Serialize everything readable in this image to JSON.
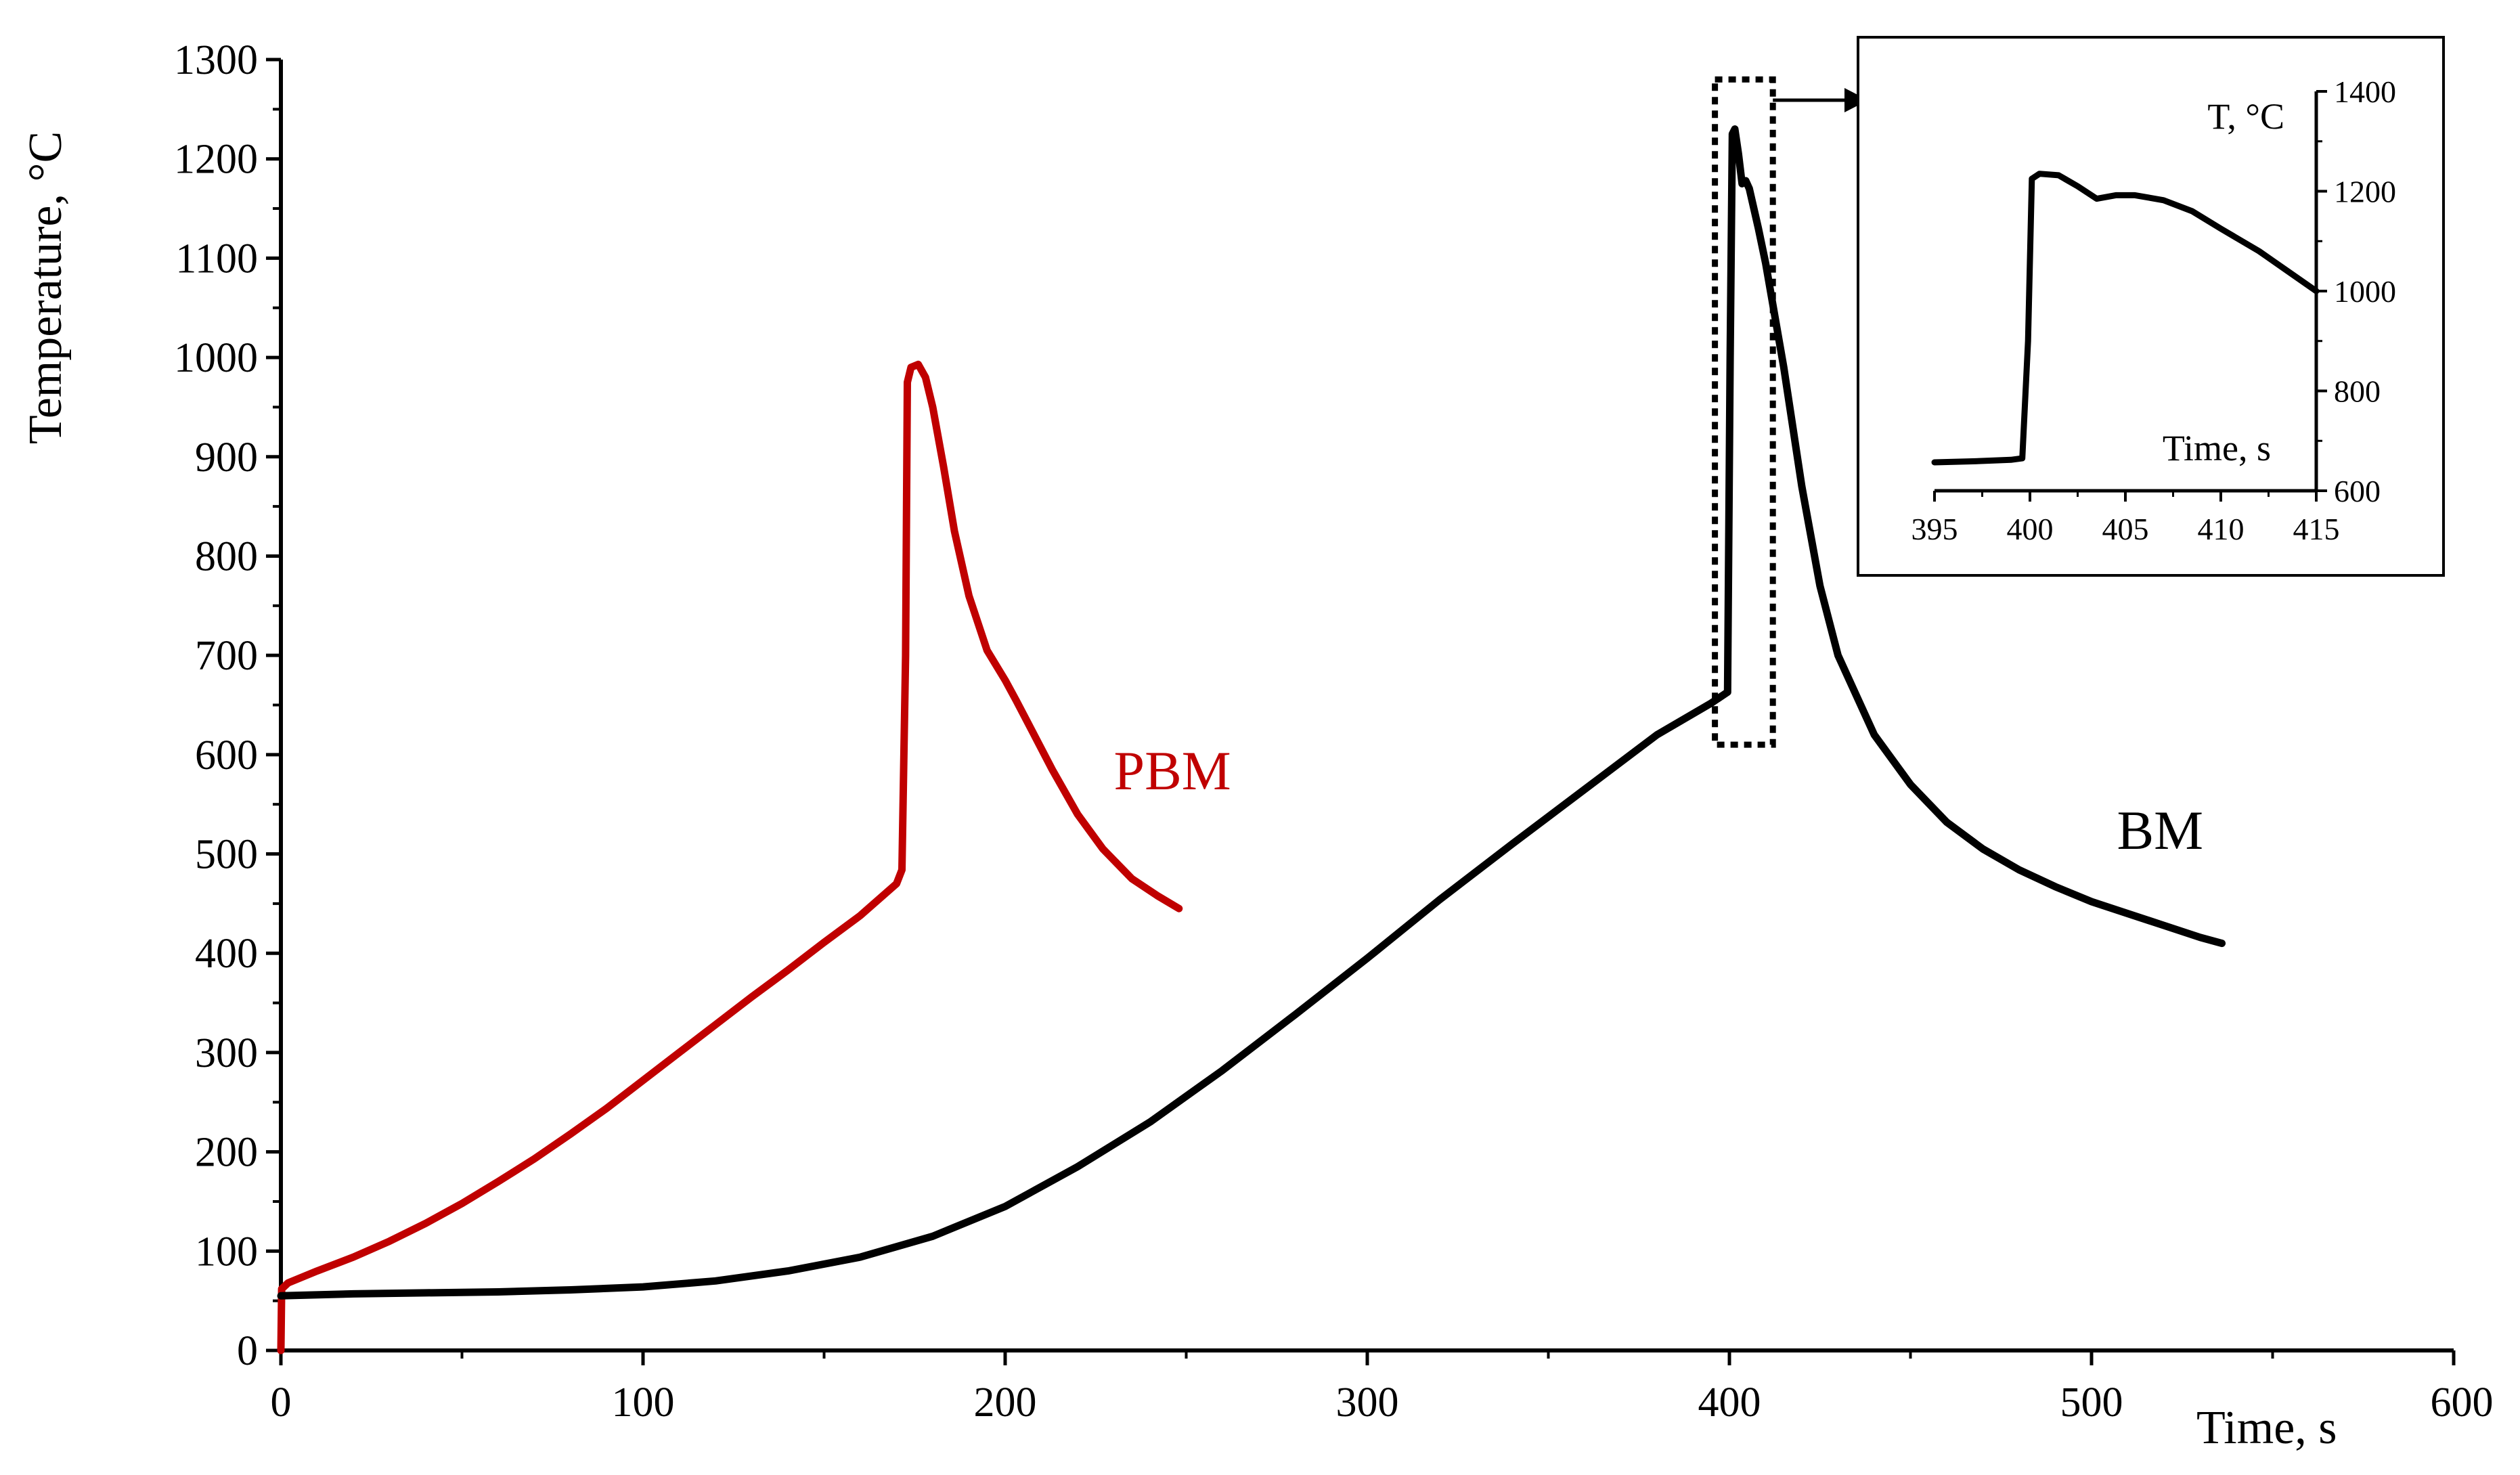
{
  "chart_data": [
    {
      "type": "line",
      "title": "",
      "xlabel": "Time, s",
      "ylabel": "Temperature, °C",
      "xlim": [
        0,
        600
      ],
      "ylim": [
        0,
        1300
      ],
      "x_ticks": [
        0,
        100,
        200,
        300,
        400,
        500,
        600
      ],
      "y_ticks": [
        0,
        100,
        200,
        300,
        400,
        500,
        600,
        700,
        800,
        900,
        1000,
        1100,
        1200,
        1300
      ],
      "grid": false,
      "legend": "none",
      "series": [
        {
          "name": "PBM",
          "color": "#c00000",
          "points": [
            [
              0,
              0
            ],
            [
              0.2,
              62
            ],
            [
              2,
              68
            ],
            [
              10,
              80
            ],
            [
              20,
              94
            ],
            [
              30,
              110
            ],
            [
              40,
              128
            ],
            [
              50,
              148
            ],
            [
              60,
              170
            ],
            [
              70,
              193
            ],
            [
              80,
              218
            ],
            [
              90,
              244
            ],
            [
              100,
              272
            ],
            [
              110,
              300
            ],
            [
              120,
              328
            ],
            [
              130,
              356
            ],
            [
              140,
              383
            ],
            [
              150,
              411
            ],
            [
              160,
              438
            ],
            [
              170,
              470
            ],
            [
              171.5,
              484
            ],
            [
              172.5,
              700
            ],
            [
              173,
              975
            ],
            [
              174,
              990
            ],
            [
              176,
              993
            ],
            [
              178,
              980
            ],
            [
              180,
              950
            ],
            [
              183,
              890
            ],
            [
              186,
              825
            ],
            [
              190,
              760
            ],
            [
              195,
              705
            ],
            [
              200,
              675
            ],
            [
              203,
              655
            ],
            [
              208,
              620
            ],
            [
              213,
              585
            ],
            [
              220,
              540
            ],
            [
              227,
              505
            ],
            [
              235,
              475
            ],
            [
              242,
              458
            ],
            [
              248,
              445
            ]
          ]
        },
        {
          "name": "BM",
          "color": "#000000",
          "points": [
            [
              0,
              55
            ],
            [
              20,
              57
            ],
            [
              40,
              58
            ],
            [
              60,
              59
            ],
            [
              80,
              61
            ],
            [
              100,
              64
            ],
            [
              120,
              70
            ],
            [
              140,
              80
            ],
            [
              160,
              94
            ],
            [
              180,
              115
            ],
            [
              200,
              145
            ],
            [
              220,
              185
            ],
            [
              240,
              230
            ],
            [
              260,
              282
            ],
            [
              280,
              338
            ],
            [
              300,
              395
            ],
            [
              320,
              454
            ],
            [
              340,
              510
            ],
            [
              360,
              565
            ],
            [
              380,
              620
            ],
            [
              395,
              652
            ],
            [
              399.5,
              663
            ],
            [
              400.2,
              1000
            ],
            [
              400.8,
              1225
            ],
            [
              401.5,
              1230
            ],
            [
              402.5,
              1205
            ],
            [
              403.5,
              1175
            ],
            [
              404.5,
              1178
            ],
            [
              405.5,
              1170
            ],
            [
              408,
              1130
            ],
            [
              410,
              1095
            ],
            [
              415,
              990
            ],
            [
              420,
              870
            ],
            [
              425,
              770
            ],
            [
              430,
              700
            ],
            [
              440,
              620
            ],
            [
              450,
              570
            ],
            [
              460,
              532
            ],
            [
              470,
              505
            ],
            [
              480,
              484
            ],
            [
              490,
              467
            ],
            [
              500,
              452
            ],
            [
              510,
              440
            ],
            [
              520,
              428
            ],
            [
              530,
              416
            ],
            [
              536,
              410
            ]
          ]
        }
      ],
      "annotations": [
        {
          "text": "PBM",
          "x": 230,
          "y": 565,
          "color": "#c00000"
        },
        {
          "text": "BM",
          "x": 507,
          "y": 505,
          "color": "#000000"
        }
      ],
      "highlight_box": {
        "x": [
          396,
          412
        ],
        "y": [
          610,
          1280
        ]
      }
    },
    {
      "type": "line",
      "title": "",
      "inset": true,
      "xlabel": "Time, s",
      "ylabel": "T, °C",
      "xlim": [
        395,
        415
      ],
      "ylim": [
        600,
        1400
      ],
      "x_ticks": [
        395,
        400,
        405,
        410,
        415
      ],
      "y_ticks": [
        600,
        800,
        1000,
        1200,
        1400
      ],
      "y_axis_side": "right",
      "series": [
        {
          "name": "BM",
          "color": "#000000",
          "points": [
            [
              395,
              657
            ],
            [
              397,
              659
            ],
            [
              399,
              662
            ],
            [
              399.6,
              665
            ],
            [
              399.9,
              900
            ],
            [
              400.1,
              1225
            ],
            [
              400.5,
              1235
            ],
            [
              401.5,
              1232
            ],
            [
              402.5,
              1210
            ],
            [
              403.5,
              1185
            ],
            [
              404.5,
              1192
            ],
            [
              405.5,
              1192
            ],
            [
              407,
              1182
            ],
            [
              408.5,
              1160
            ],
            [
              410,
              1125
            ],
            [
              412,
              1080
            ],
            [
              413.5,
              1040
            ],
            [
              415,
              1000
            ]
          ]
        }
      ]
    }
  ]
}
